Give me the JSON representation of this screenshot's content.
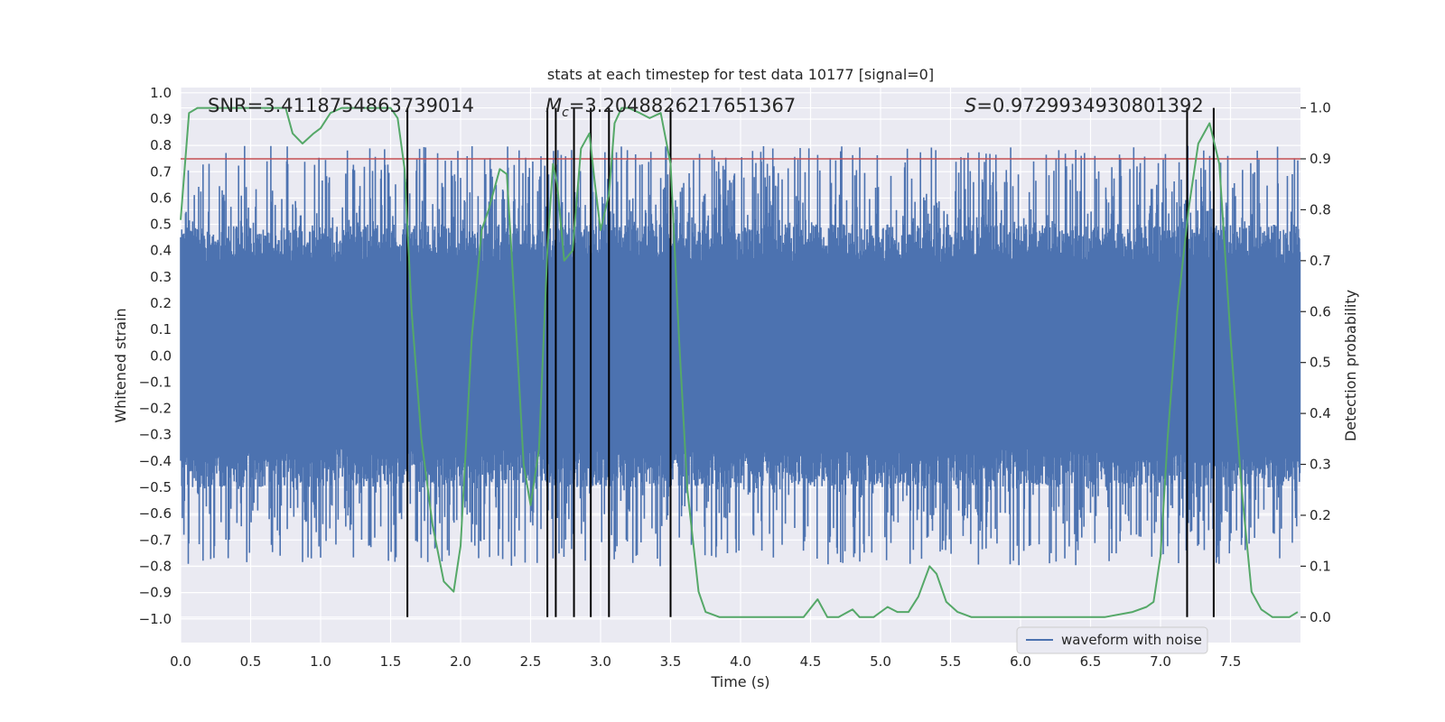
{
  "chart_data": {
    "type": "line",
    "title": "stats at each timestep for test data 10177 [signal=0]",
    "xlabel": "Time (s)",
    "ylabel_left": "Whitened strain",
    "ylabel_right": "Detection probability",
    "xlim": [
      0.0,
      8.0
    ],
    "ylim_left": [
      -1.09,
      1.02
    ],
    "ylim_right": [
      -0.05,
      1.04
    ],
    "x_ticks": [
      "0.0",
      "0.5",
      "1.0",
      "1.5",
      "2.0",
      "2.5",
      "3.0",
      "3.5",
      "4.0",
      "4.5",
      "5.0",
      "5.5",
      "6.0",
      "6.5",
      "7.0",
      "7.5"
    ],
    "y_left_ticks": [
      "1.0",
      "0.9",
      "0.8",
      "0.7",
      "0.6",
      "0.5",
      "0.4",
      "0.3",
      "0.2",
      "0.1",
      "0.0",
      "−0.1",
      "−0.2",
      "−0.3",
      "−0.4",
      "−0.5",
      "−0.6",
      "−0.7",
      "−0.8",
      "−0.9",
      "−1.0"
    ],
    "y_right_ticks": [
      "1.0",
      "0.9",
      "0.8",
      "0.7",
      "0.6",
      "0.5",
      "0.4",
      "0.3",
      "0.2",
      "0.1",
      "0.0"
    ],
    "annotations": {
      "snr": "SNR=3.4118754863739014",
      "mc_symbol": "M",
      "mc_sub": "c",
      "mc_value": "=3.2048826217651367",
      "s_symbol": "S",
      "s_value": "=0.9729934930801392"
    },
    "legend": {
      "location": "lower-right",
      "entries": [
        "waveform with noise"
      ]
    },
    "threshold": 0.9,
    "vertical_lines": [
      1.62,
      2.62,
      2.68,
      2.81,
      2.93,
      3.06,
      3.5,
      7.19,
      7.38
    ],
    "waveform": {
      "name": "waveform with noise",
      "samples": 2048,
      "duration_s": 8.0,
      "core_amplitude": 0.35,
      "seed": 10177
    },
    "series": [
      {
        "name": "Detection probability",
        "axis": "right",
        "x": [
          0.0,
          0.06,
          0.12,
          0.25,
          0.4,
          0.55,
          0.7,
          0.75,
          0.8,
          0.87,
          0.95,
          1.0,
          1.07,
          1.15,
          1.25,
          1.38,
          1.5,
          1.55,
          1.6,
          1.65,
          1.72,
          1.8,
          1.88,
          1.95,
          2.0,
          2.08,
          2.15,
          2.2,
          2.28,
          2.33,
          2.4,
          2.45,
          2.5,
          2.56,
          2.62,
          2.66,
          2.69,
          2.74,
          2.8,
          2.86,
          2.92,
          2.96,
          3.0,
          3.06,
          3.1,
          3.15,
          3.2,
          3.28,
          3.35,
          3.43,
          3.5,
          3.56,
          3.62,
          3.7,
          3.75,
          3.85,
          4.0,
          4.2,
          4.3,
          4.45,
          4.55,
          4.62,
          4.7,
          4.8,
          4.85,
          4.95,
          5.05,
          5.12,
          5.2,
          5.27,
          5.35,
          5.4,
          5.47,
          5.55,
          5.65,
          5.8,
          6.0,
          6.3,
          6.6,
          6.8,
          6.9,
          6.95,
          7.0,
          7.05,
          7.12,
          7.2,
          7.27,
          7.35,
          7.42,
          7.5,
          7.58,
          7.65,
          7.72,
          7.8,
          7.92,
          7.98
        ],
        "y": [
          0.78,
          0.99,
          1.0,
          1.0,
          1.0,
          1.0,
          1.0,
          1.0,
          0.95,
          0.93,
          0.95,
          0.96,
          0.99,
          1.0,
          1.0,
          1.0,
          1.0,
          0.98,
          0.88,
          0.6,
          0.35,
          0.18,
          0.07,
          0.05,
          0.14,
          0.55,
          0.76,
          0.8,
          0.88,
          0.87,
          0.55,
          0.3,
          0.22,
          0.33,
          0.72,
          0.89,
          0.85,
          0.7,
          0.72,
          0.92,
          0.95,
          0.85,
          0.76,
          0.83,
          0.97,
          1.0,
          1.0,
          0.99,
          0.98,
          0.99,
          0.89,
          0.55,
          0.25,
          0.05,
          0.01,
          0.0,
          0.0,
          0.0,
          0.0,
          0.0,
          0.035,
          0.0,
          0.0,
          0.015,
          0.0,
          0.0,
          0.02,
          0.01,
          0.01,
          0.04,
          0.1,
          0.085,
          0.03,
          0.01,
          0.0,
          0.0,
          0.0,
          0.0,
          0.0,
          0.01,
          0.02,
          0.03,
          0.12,
          0.35,
          0.6,
          0.8,
          0.93,
          0.97,
          0.89,
          0.55,
          0.25,
          0.05,
          0.015,
          0.0,
          0.0,
          0.01
        ]
      }
    ],
    "colors": {
      "background": "#eaeaf2",
      "grid": "#ffffff",
      "waveform": "#4c72b0",
      "probability": "#55a868",
      "threshold": "#c44e52",
      "vlines": "#000000",
      "text": "#262626"
    }
  }
}
